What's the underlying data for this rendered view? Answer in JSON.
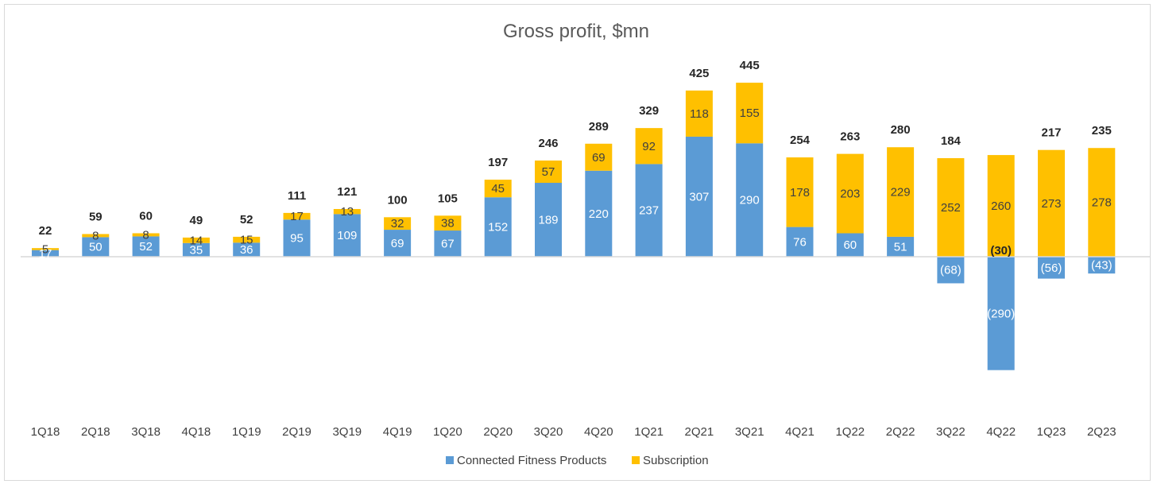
{
  "chart_data": {
    "type": "bar",
    "stacked": true,
    "title": "Gross profit, $mn",
    "categories": [
      "1Q18",
      "2Q18",
      "3Q18",
      "4Q18",
      "1Q19",
      "2Q19",
      "3Q19",
      "4Q19",
      "1Q20",
      "2Q20",
      "3Q20",
      "4Q20",
      "1Q21",
      "2Q21",
      "3Q21",
      "4Q21",
      "1Q22",
      "2Q22",
      "3Q22",
      "4Q22",
      "1Q23",
      "2Q23"
    ],
    "series": [
      {
        "name": "Connected Fitness Products",
        "color": "#5b9bd5",
        "values": [
          17,
          50,
          52,
          35,
          36,
          95,
          109,
          69,
          67,
          152,
          189,
          220,
          237,
          307,
          290,
          76,
          60,
          51,
          -68,
          -290,
          -56,
          -43
        ],
        "labels": [
          "17",
          "50",
          "52",
          "35",
          "36",
          "95",
          "109",
          "69",
          "67",
          "152",
          "189",
          "220",
          "237",
          "307",
          "290",
          "76",
          "60",
          "51",
          "(68)",
          "(290)",
          "(56)",
          "(43)"
        ]
      },
      {
        "name": "Subscription",
        "color": "#ffc000",
        "values": [
          5,
          8,
          8,
          14,
          15,
          17,
          13,
          32,
          38,
          45,
          57,
          69,
          92,
          118,
          155,
          178,
          203,
          229,
          252,
          260,
          273,
          278
        ],
        "labels": [
          "5",
          "8",
          "8",
          "14",
          "15",
          "17",
          "13",
          "32",
          "38",
          "45",
          "57",
          "69",
          "92",
          "118",
          "155",
          "178",
          "203",
          "229",
          "252",
          "260",
          "273",
          "278"
        ]
      }
    ],
    "totals": [
      "22",
      "59",
      "60",
      "49",
      "52",
      "111",
      "121",
      "100",
      "105",
      "197",
      "246",
      "289",
      "329",
      "425",
      "445",
      "254",
      "263",
      "280",
      "184",
      "(30)",
      "217",
      "235"
    ],
    "ylim": [
      -300,
      450
    ],
    "grid": false,
    "legend_position": "bottom"
  }
}
